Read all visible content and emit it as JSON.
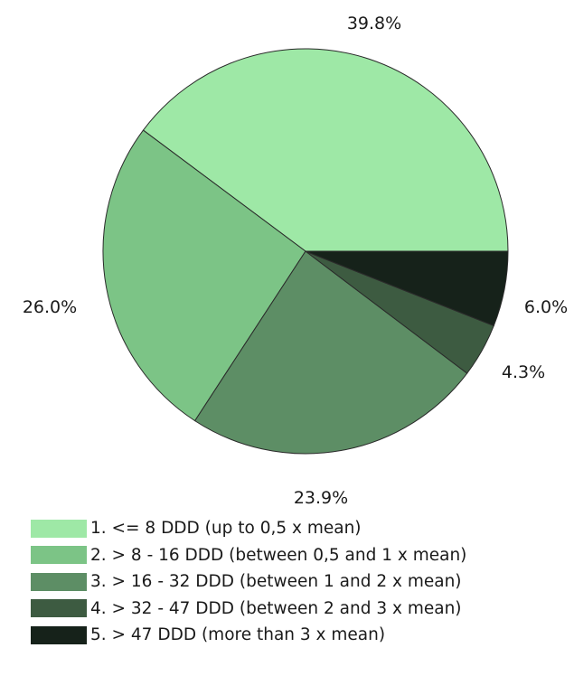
{
  "chart_data": {
    "type": "pie",
    "categories": [
      "1. <= 8 DDD (up to 0,5 x mean)",
      "2. > 8 - 16 DDD (between 0,5 and 1 x mean)",
      "3. > 16 - 32 DDD (between 1 and 2 x mean)",
      "4. > 32 - 47 DDD (between 2 and 3 x mean)",
      "5. > 47 DDD (more than 3 x mean)"
    ],
    "values": [
      39.8,
      26.0,
      23.9,
      4.3,
      6.0
    ],
    "data_labels": [
      "39.8%",
      "26.0%",
      "23.9%",
      "4.3%",
      "6.0%"
    ],
    "colors": [
      "#9ee8a6",
      "#7cc486",
      "#5d8e65",
      "#3d5b41",
      "#16221a"
    ],
    "start_angle_deg": 0,
    "direction": "counterclockwise",
    "legend_position": "bottom"
  }
}
